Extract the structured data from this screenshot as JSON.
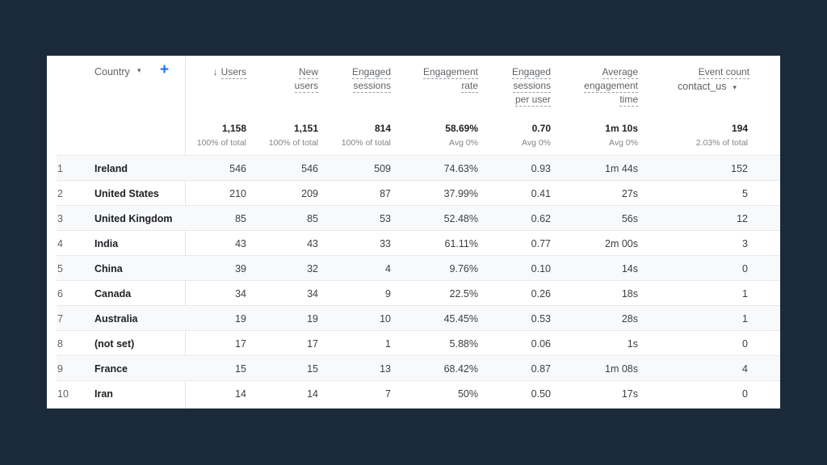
{
  "table": {
    "dimension": {
      "label": "Country",
      "caret": "▾",
      "add_icon": "+"
    },
    "columns": [
      {
        "key": "users",
        "label_lines": [
          "Users"
        ],
        "sort": "↓",
        "total": "1,158",
        "total_sub": "100% of total"
      },
      {
        "key": "new_users",
        "label_lines": [
          "New",
          "users"
        ],
        "total": "1,151",
        "total_sub": "100% of total"
      },
      {
        "key": "engaged_sessions",
        "label_lines": [
          "Engaged",
          "sessions"
        ],
        "total": "814",
        "total_sub": "100% of total"
      },
      {
        "key": "engagement_rate",
        "label_lines": [
          "Engagement",
          "rate"
        ],
        "total": "58.69%",
        "total_sub": "Avg 0%"
      },
      {
        "key": "engaged_sessions_per_user",
        "label_lines": [
          "Engaged",
          "sessions",
          "per user"
        ],
        "total": "0.70",
        "total_sub": "Avg 0%"
      },
      {
        "key": "avg_engagement_time",
        "label_lines": [
          "Average",
          "engagement",
          "time"
        ],
        "total": "1m 10s",
        "total_sub": "Avg 0%"
      },
      {
        "key": "event_count",
        "label_lines": [
          "Event count"
        ],
        "sub_select": "contact_us",
        "sub_caret": "▾",
        "total": "194",
        "total_sub": "2.03% of total"
      }
    ],
    "rows": [
      {
        "idx": "1",
        "country": "Ireland",
        "values": [
          "546",
          "546",
          "509",
          "74.63%",
          "0.93",
          "1m 44s",
          "152"
        ]
      },
      {
        "idx": "2",
        "country": "United States",
        "values": [
          "210",
          "209",
          "87",
          "37.99%",
          "0.41",
          "27s",
          "5"
        ]
      },
      {
        "idx": "3",
        "country": "United Kingdom",
        "values": [
          "85",
          "85",
          "53",
          "52.48%",
          "0.62",
          "56s",
          "12"
        ]
      },
      {
        "idx": "4",
        "country": "India",
        "values": [
          "43",
          "43",
          "33",
          "61.11%",
          "0.77",
          "2m 00s",
          "3"
        ]
      },
      {
        "idx": "5",
        "country": "China",
        "values": [
          "39",
          "32",
          "4",
          "9.76%",
          "0.10",
          "14s",
          "0"
        ]
      },
      {
        "idx": "6",
        "country": "Canada",
        "values": [
          "34",
          "34",
          "9",
          "22.5%",
          "0.26",
          "18s",
          "1"
        ]
      },
      {
        "idx": "7",
        "country": "Australia",
        "values": [
          "19",
          "19",
          "10",
          "45.45%",
          "0.53",
          "28s",
          "1"
        ]
      },
      {
        "idx": "8",
        "country": "(not set)",
        "values": [
          "17",
          "17",
          "1",
          "5.88%",
          "0.06",
          "1s",
          "0"
        ]
      },
      {
        "idx": "9",
        "country": "France",
        "values": [
          "15",
          "15",
          "13",
          "68.42%",
          "0.87",
          "1m 08s",
          "4"
        ]
      },
      {
        "idx": "10",
        "country": "Iran",
        "values": [
          "14",
          "14",
          "7",
          "50%",
          "0.50",
          "17s",
          "0"
        ]
      }
    ]
  },
  "colors": {
    "background": "#1b2a3a",
    "accent": "#1a73e8",
    "card": "#ffffff"
  }
}
